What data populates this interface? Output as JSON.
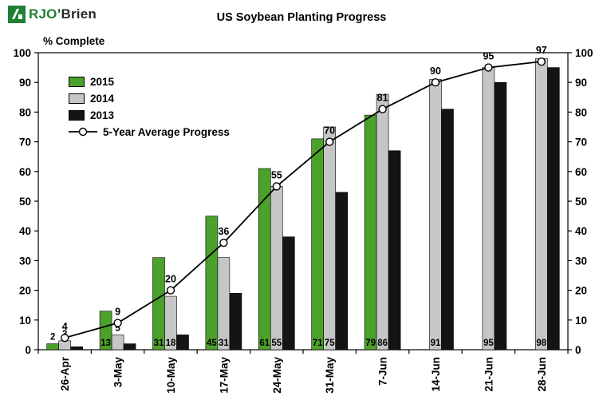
{
  "logo": {
    "rjo": "RJO",
    "brien": "’Brien"
  },
  "chart_data": {
    "type": "bar",
    "title": "US Soybean Planting Progress",
    "ylabel": "% Complete",
    "xlabel": "",
    "ylim": [
      0,
      100
    ],
    "y_ticks": [
      0,
      10,
      20,
      30,
      40,
      50,
      60,
      70,
      80,
      90,
      100
    ],
    "grid": false,
    "legend_position": "top-left-inside",
    "categories": [
      "26-Apr",
      "3-May",
      "10-May",
      "17-May",
      "24-May",
      "31-May",
      "7-Jun",
      "14-Jun",
      "21-Jun",
      "28-Jun"
    ],
    "series": [
      {
        "name": "2015",
        "type": "bar",
        "color": "#4CA12C",
        "show_value_labels": true,
        "values": [
          2,
          13,
          31,
          45,
          61,
          71,
          79,
          null,
          null,
          null
        ]
      },
      {
        "name": "2014",
        "type": "bar",
        "color": "#C6C6C6",
        "show_value_labels": true,
        "values": [
          3,
          5,
          18,
          31,
          55,
          75,
          86,
          91,
          95,
          98
        ]
      },
      {
        "name": "2013",
        "type": "bar",
        "color": "#141414",
        "show_value_labels": false,
        "values": [
          1,
          2,
          5,
          19,
          38,
          53,
          67,
          81,
          90,
          95
        ]
      },
      {
        "name": "5-Year Average Progress",
        "type": "line",
        "color": "#000000",
        "marker": "open-circle",
        "show_value_labels": true,
        "values": [
          4,
          9,
          20,
          36,
          55,
          70,
          81,
          90,
          95,
          97
        ]
      }
    ]
  }
}
